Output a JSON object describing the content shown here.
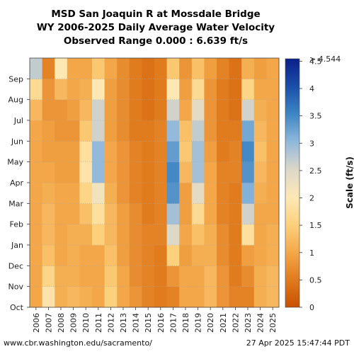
{
  "chart_data": {
    "type": "heatmap",
    "title_lines": [
      "MSD San Joaquin R at Mossdale Bridge",
      "WY 2006-2025 Daily Average Water Velocity",
      "Observed Range 0.000 : 6.639 ft/s"
    ],
    "xlabel": "",
    "ylabel": "",
    "x_categories": [
      "2006",
      "2007",
      "2008",
      "2009",
      "2010",
      "2011",
      "2012",
      "2013",
      "2014",
      "2015",
      "2016",
      "2017",
      "2018",
      "2019",
      "2020",
      "2021",
      "2022",
      "2023",
      "2024",
      "2025"
    ],
    "y_categories": [
      "Oct",
      "Nov",
      "Dec",
      "Jan",
      "Feb",
      "Mar",
      "Apr",
      "May",
      "Jun",
      "Jul",
      "Aug",
      "Sep"
    ],
    "colorbar": {
      "label": "Scale (ft/s)",
      "ticks": [
        "0",
        "0.5",
        "1",
        "1.5",
        "2",
        "2.5",
        "3",
        "3.5",
        "4",
        "4.5"
      ],
      "range": [
        0,
        4.544
      ],
      "max_label": "> 4.544",
      "colors": [
        "#c85000",
        "#e07b1e",
        "#f3a84a",
        "#fdd17e",
        "#fde9b6",
        "#dcd7c8",
        "#8fb8dc",
        "#3d86c4",
        "#1a4fa8",
        "#0b1f8a"
      ]
    },
    "monthly_velocity_ft_s": [
      [
        1.0,
        1.0,
        1.0,
        1.0,
        1.0,
        1.0,
        1.0,
        1.0,
        1.0,
        1.2,
        1.7,
        2.7
      ],
      [
        1.9,
        1.6,
        1.3,
        1.2,
        1.2,
        1.1,
        1.0,
        0.9,
        0.9,
        0.8,
        0.8,
        0.6
      ],
      [
        1.1,
        1.1,
        1.0,
        1.0,
        1.0,
        1.0,
        0.9,
        0.9,
        0.8,
        0.8,
        1.2,
        2.0
      ],
      [
        1.2,
        1.1,
        1.1,
        1.1,
        1.0,
        1.0,
        0.9,
        0.9,
        0.8,
        0.9,
        1.0,
        1.0
      ],
      [
        1.1,
        1.0,
        1.0,
        1.1,
        1.3,
        1.6,
        1.9,
        1.8,
        1.4,
        1.2,
        1.1,
        1.0
      ],
      [
        1.0,
        1.0,
        1.0,
        1.5,
        1.8,
        2.2,
        3.0,
        3.0,
        2.6,
        2.6,
        2.0,
        1.4
      ],
      [
        1.5,
        1.4,
        1.3,
        1.2,
        1.2,
        1.1,
        1.0,
        1.0,
        0.9,
        0.9,
        0.9,
        1.0
      ],
      [
        1.0,
        1.0,
        0.9,
        0.9,
        0.9,
        0.8,
        0.8,
        0.8,
        0.7,
        0.7,
        0.7,
        0.7
      ],
      [
        0.8,
        0.7,
        0.7,
        0.7,
        0.7,
        0.6,
        0.6,
        0.6,
        0.5,
        0.5,
        0.5,
        0.5
      ],
      [
        0.6,
        0.6,
        0.6,
        0.6,
        0.5,
        0.5,
        0.5,
        0.5,
        0.5,
        0.4,
        0.4,
        0.4
      ],
      [
        0.5,
        0.5,
        0.5,
        0.6,
        0.6,
        0.6,
        0.6,
        0.6,
        0.6,
        0.5,
        0.5,
        0.5
      ],
      [
        0.6,
        0.8,
        1.5,
        2.5,
        2.9,
        3.4,
        3.5,
        3.3,
        3.0,
        2.6,
        2.0,
        1.4
      ],
      [
        1.0,
        1.0,
        0.9,
        1.0,
        0.9,
        0.9,
        1.2,
        1.4,
        1.3,
        1.0,
        0.9,
        0.8
      ],
      [
        1.0,
        1.0,
        1.1,
        1.3,
        1.7,
        2.4,
        2.9,
        2.9,
        2.7,
        2.4,
        1.7,
        1.3
      ],
      [
        1.2,
        1.2,
        1.1,
        1.1,
        1.0,
        1.0,
        1.0,
        0.9,
        0.8,
        0.8,
        0.8,
        0.9
      ],
      [
        0.8,
        0.8,
        0.7,
        0.7,
        0.6,
        0.6,
        0.6,
        0.5,
        0.5,
        0.5,
        0.5,
        0.6
      ],
      [
        0.6,
        0.5,
        0.5,
        0.5,
        0.5,
        0.5,
        0.6,
        0.6,
        0.5,
        0.4,
        0.4,
        0.4
      ],
      [
        0.6,
        0.7,
        0.9,
        1.8,
        2.6,
        3.1,
        3.4,
        3.5,
        3.2,
        2.6,
        1.6,
        1.1
      ],
      [
        1.1,
        1.1,
        1.0,
        1.0,
        1.0,
        1.1,
        1.2,
        1.3,
        1.2,
        1.1,
        1.0,
        0.9
      ],
      [
        1.2,
        1.2,
        1.1,
        1.1,
        1.0,
        1.0,
        1.0,
        1.0,
        1.0,
        1.0,
        1.0,
        1.0
      ]
    ]
  },
  "footer": {
    "url": "www.cbr.washington.edu/sacramento/",
    "timestamp": "27 Apr 2025 15:47:44 PDT"
  }
}
